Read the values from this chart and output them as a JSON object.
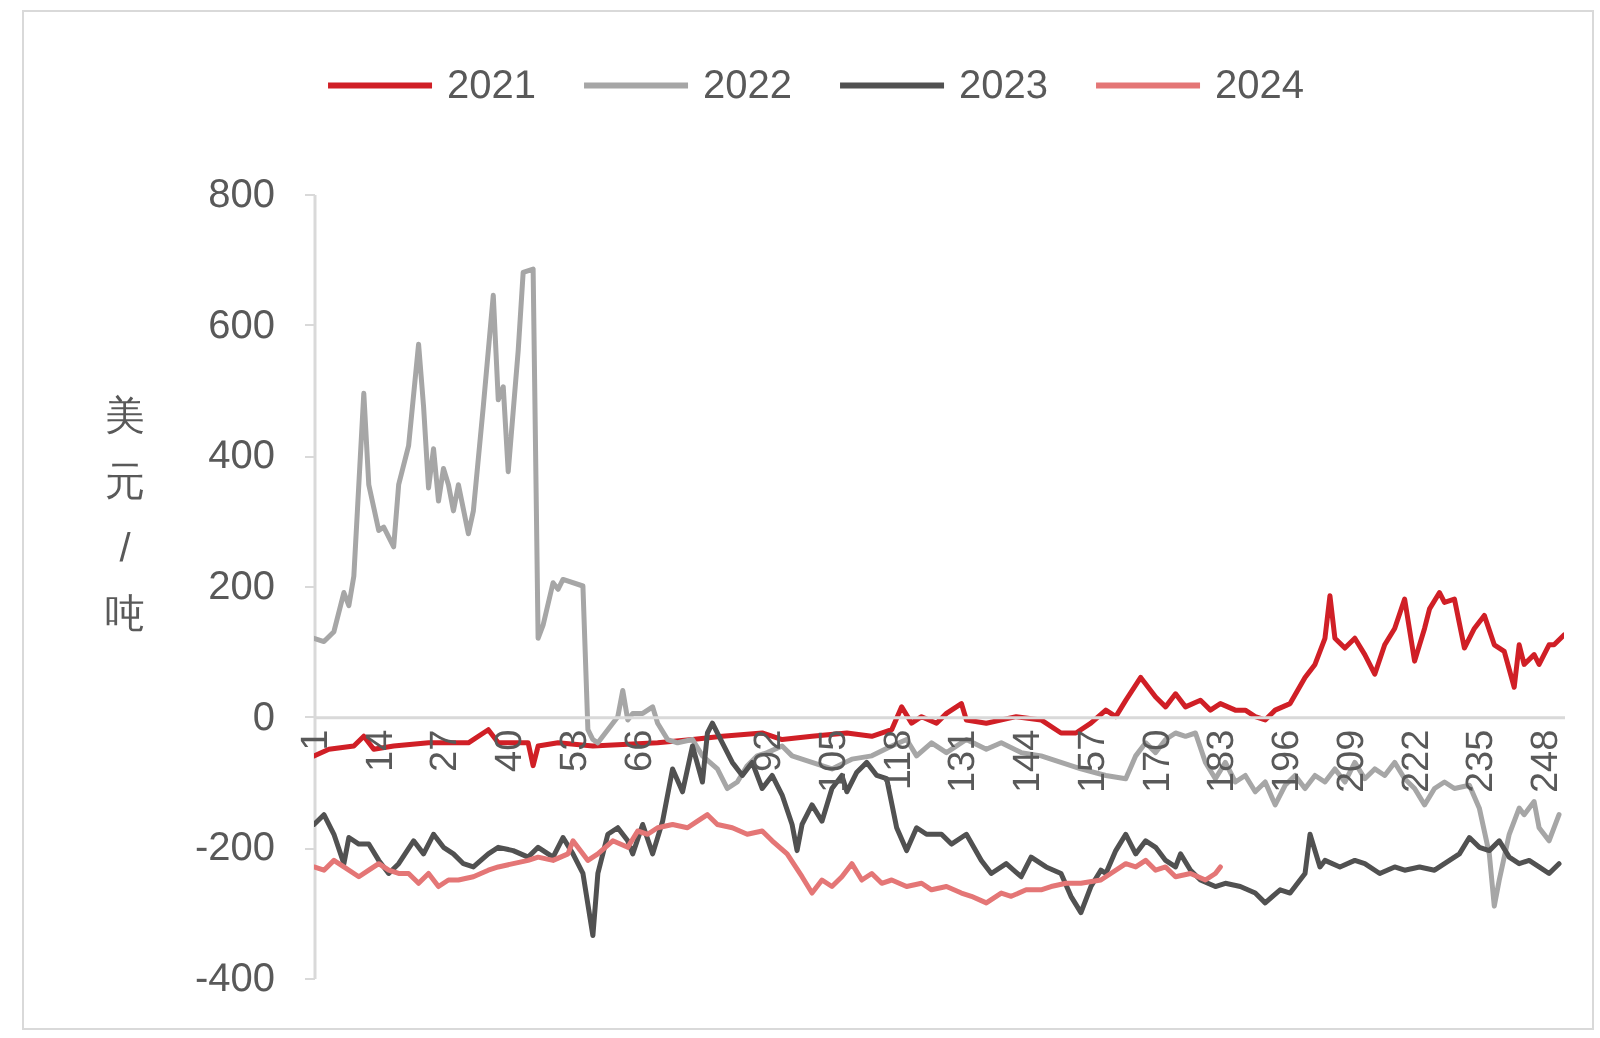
{
  "chart_data": {
    "type": "line",
    "ylabel": "美元/吨",
    "legend": "top",
    "xlim": [
      1,
      252
    ],
    "xticks": [
      1,
      14,
      27,
      40,
      53,
      66,
      92,
      105,
      118,
      131,
      144,
      157,
      170,
      183,
      196,
      209,
      222,
      235,
      248
    ],
    "ylim": [
      -400,
      800
    ],
    "yticks": [
      -400,
      -200,
      0,
      200,
      400,
      600,
      800
    ],
    "series": [
      {
        "name": "2021",
        "color": "#d01f26",
        "x": [
          1,
          4,
          9,
          11,
          13,
          17,
          24,
          32,
          36,
          38,
          44,
          45,
          46,
          50,
          57,
          70,
          77,
          83,
          91,
          95,
          101,
          108,
          113,
          117,
          119,
          121,
          123,
          126,
          128,
          131,
          132,
          136,
          142,
          147,
          151,
          154,
          157,
          160,
          162,
          164,
          167,
          170,
          172,
          174,
          176,
          179,
          181,
          183,
          186,
          188,
          190,
          192,
          194,
          197,
          200,
          202,
          204,
          205,
          206,
          208,
          210,
          212,
          214,
          216,
          218,
          220,
          222,
          224,
          225,
          227,
          228,
          230,
          232,
          234,
          236,
          238,
          240,
          242,
          243,
          244,
          246,
          247,
          249,
          250,
          252
        ],
        "values": [
          -60,
          -50,
          -45,
          -30,
          -50,
          -45,
          -40,
          -40,
          -20,
          -40,
          -40,
          -75,
          -45,
          -40,
          -45,
          -40,
          -35,
          -30,
          -25,
          -35,
          -30,
          -25,
          -30,
          -20,
          15,
          -10,
          0,
          -10,
          5,
          20,
          -5,
          -10,
          0,
          -5,
          -25,
          -25,
          -10,
          10,
          0,
          25,
          60,
          30,
          15,
          35,
          15,
          25,
          10,
          20,
          10,
          10,
          0,
          -5,
          10,
          20,
          60,
          80,
          120,
          185,
          120,
          105,
          120,
          95,
          65,
          110,
          135,
          180,
          85,
          135,
          165,
          190,
          175,
          180,
          105,
          135,
          155,
          110,
          100,
          45,
          110,
          80,
          95,
          80,
          110,
          110,
          125
        ]
      },
      {
        "name": "2022",
        "color": "#a6a6a6",
        "x": [
          1,
          3,
          5,
          7,
          8,
          9,
          11,
          12,
          14,
          15,
          17,
          18,
          20,
          22,
          23,
          24,
          25,
          26,
          27,
          28,
          29,
          30,
          32,
          33,
          35,
          37,
          38,
          39,
          40,
          42,
          43,
          45,
          46,
          47,
          49,
          50,
          51,
          55,
          56,
          57,
          58,
          60,
          62,
          63,
          64,
          65,
          67,
          69,
          70,
          72,
          74,
          77,
          79,
          82,
          84,
          86,
          88,
          90,
          92,
          95,
          97,
          101,
          105,
          109,
          113,
          117,
          120,
          122,
          125,
          128,
          132,
          136,
          139,
          143,
          147,
          151,
          155,
          160,
          164,
          166,
          168,
          170,
          172,
          174,
          176,
          178,
          180,
          182,
          184,
          186,
          188,
          190,
          192,
          194,
          196,
          198,
          200,
          202,
          204,
          206,
          208,
          210,
          212,
          214,
          216,
          218,
          220,
          222,
          224,
          226,
          228,
          230,
          233,
          235,
          237,
          238,
          239,
          241,
          243,
          244,
          246,
          247,
          249,
          251
        ],
        "values": [
          120,
          115,
          130,
          190,
          170,
          215,
          495,
          355,
          285,
          290,
          260,
          355,
          415,
          570,
          475,
          350,
          410,
          330,
          380,
          355,
          315,
          355,
          280,
          315,
          475,
          645,
          485,
          505,
          375,
          560,
          680,
          685,
          120,
          140,
          205,
          195,
          210,
          200,
          -20,
          -35,
          -40,
          -20,
          0,
          40,
          -5,
          5,
          5,
          15,
          -10,
          -35,
          -40,
          -35,
          -60,
          -80,
          -110,
          -100,
          -75,
          -60,
          -55,
          -45,
          -60,
          -70,
          -80,
          -65,
          -60,
          -45,
          -35,
          -60,
          -40,
          -55,
          -35,
          -50,
          -40,
          -55,
          -60,
          -70,
          -80,
          -90,
          -95,
          -60,
          -40,
          -55,
          -35,
          -25,
          -30,
          -25,
          -70,
          -95,
          -70,
          -100,
          -90,
          -115,
          -100,
          -135,
          -105,
          -90,
          -110,
          -90,
          -100,
          -80,
          -100,
          -70,
          -95,
          -80,
          -90,
          -70,
          -95,
          -110,
          -135,
          -110,
          -100,
          -110,
          -105,
          -140,
          -210,
          -290,
          -250,
          -180,
          -140,
          -150,
          -130,
          -170,
          -190,
          -150
        ]
      },
      {
        "name": "2023",
        "color": "#515151",
        "x": [
          1,
          3,
          5,
          7,
          8,
          10,
          12,
          14,
          16,
          18,
          21,
          23,
          25,
          27,
          29,
          31,
          33,
          36,
          38,
          41,
          44,
          46,
          49,
          51,
          53,
          55,
          57,
          58,
          60,
          62,
          64,
          65,
          67,
          69,
          71,
          73,
          75,
          77,
          79,
          80,
          81,
          83,
          85,
          87,
          89,
          91,
          93,
          95,
          97,
          98,
          99,
          101,
          103,
          105,
          107,
          108,
          110,
          112,
          114,
          116,
          118,
          120,
          122,
          124,
          127,
          129,
          132,
          135,
          137,
          140,
          143,
          145,
          148,
          151,
          153,
          155,
          157,
          159,
          160,
          162,
          164,
          166,
          168,
          170,
          172,
          174,
          175,
          177,
          179,
          182,
          184,
          187,
          190,
          192,
          195,
          197,
          199,
          200,
          201,
          203,
          204,
          207,
          210,
          212,
          215,
          218,
          220,
          223,
          226,
          228,
          231,
          233,
          235,
          237,
          239,
          241,
          243,
          245,
          247,
          249,
          251
        ],
        "values": [
          -165,
          -150,
          -180,
          -225,
          -185,
          -195,
          -195,
          -220,
          -240,
          -225,
          -190,
          -210,
          -180,
          -200,
          -210,
          -225,
          -230,
          -210,
          -200,
          -205,
          -215,
          -200,
          -215,
          -185,
          -210,
          -240,
          -335,
          -240,
          -180,
          -170,
          -190,
          -210,
          -165,
          -210,
          -160,
          -80,
          -115,
          -45,
          -100,
          -25,
          -10,
          -40,
          -70,
          -90,
          -70,
          -110,
          -90,
          -120,
          -165,
          -205,
          -165,
          -135,
          -160,
          -110,
          -90,
          -115,
          -85,
          -70,
          -90,
          -95,
          -170,
          -205,
          -170,
          -180,
          -180,
          -195,
          -180,
          -220,
          -240,
          -225,
          -245,
          -215,
          -230,
          -240,
          -275,
          -300,
          -260,
          -235,
          -240,
          -205,
          -180,
          -210,
          -190,
          -200,
          -220,
          -230,
          -210,
          -235,
          -250,
          -260,
          -255,
          -260,
          -270,
          -285,
          -265,
          -270,
          -250,
          -240,
          -180,
          -230,
          -220,
          -230,
          -220,
          -225,
          -240,
          -230,
          -235,
          -230,
          -235,
          -225,
          -210,
          -185,
          -200,
          -205,
          -190,
          -215,
          -225,
          -220,
          -230,
          -240,
          -225
        ]
      },
      {
        "name": "2024",
        "color": "#e47676",
        "x": [
          1,
          3,
          5,
          7,
          10,
          12,
          14,
          16,
          18,
          20,
          22,
          24,
          26,
          28,
          30,
          33,
          36,
          38,
          41,
          44,
          46,
          49,
          52,
          53,
          56,
          58,
          61,
          64,
          66,
          68,
          70,
          73,
          76,
          78,
          80,
          82,
          85,
          88,
          91,
          93,
          96,
          99,
          101,
          103,
          105,
          107,
          109,
          111,
          113,
          115,
          117,
          120,
          123,
          125,
          128,
          131,
          133,
          136,
          139,
          141,
          144,
          147,
          149,
          152,
          155,
          159,
          161,
          164,
          166,
          168,
          170,
          172,
          174,
          177,
          180,
          182,
          183
        ],
        "values": [
          -230,
          -235,
          -220,
          -230,
          -245,
          -235,
          -225,
          -235,
          -240,
          -240,
          -255,
          -240,
          -260,
          -250,
          -250,
          -245,
          -235,
          -230,
          -225,
          -220,
          -215,
          -220,
          -210,
          -190,
          -220,
          -210,
          -190,
          -200,
          -175,
          -180,
          -170,
          -165,
          -170,
          -160,
          -150,
          -165,
          -170,
          -180,
          -175,
          -190,
          -210,
          -245,
          -270,
          -250,
          -260,
          -245,
          -225,
          -250,
          -240,
          -255,
          -250,
          -260,
          -255,
          -265,
          -260,
          -270,
          -275,
          -285,
          -270,
          -275,
          -265,
          -265,
          -260,
          -255,
          -255,
          -250,
          -240,
          -225,
          -230,
          -220,
          -235,
          -230,
          -245,
          -240,
          -250,
          -240,
          -230
        ]
      }
    ]
  }
}
